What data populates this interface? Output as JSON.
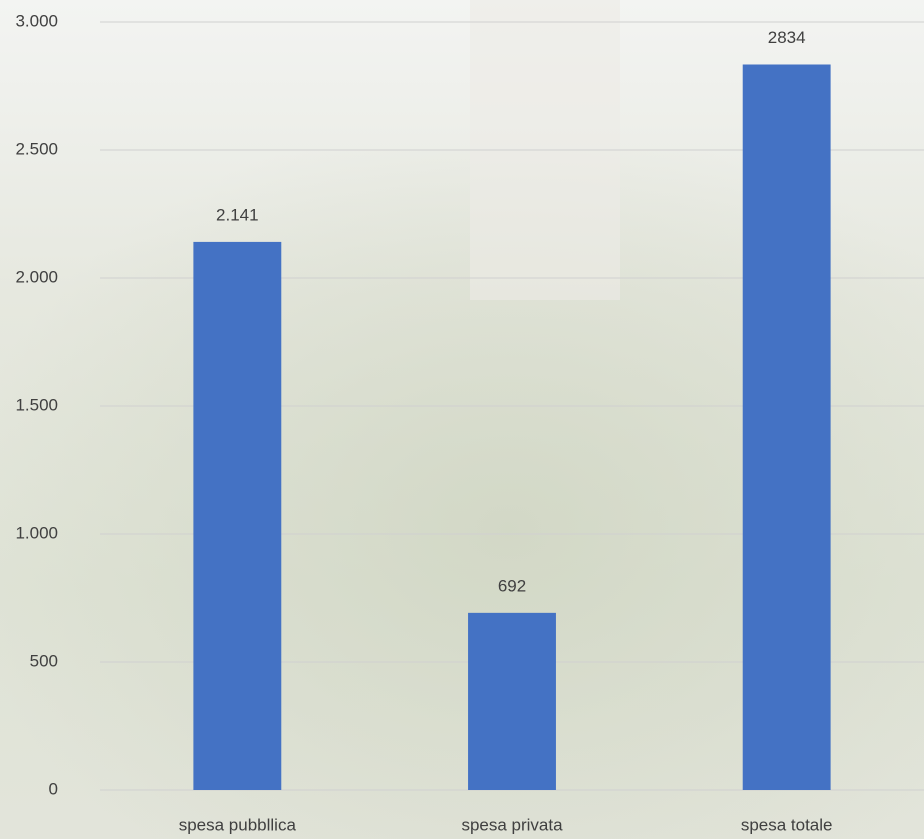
{
  "chart_data": {
    "type": "bar",
    "categories": [
      "spesa pubbllica",
      "spesa privata",
      "spesa totale"
    ],
    "values": [
      2141,
      692,
      2834
    ],
    "value_labels": [
      "2.141",
      "692",
      "2834"
    ],
    "color": "#4472c4",
    "ylim": [
      0,
      3000
    ],
    "yticks": [
      0,
      500,
      {
        "value": 1000,
        "label": "1.000"
      },
      {
        "value": 1500,
        "label": "1.500"
      },
      {
        "value": 2000,
        "label": "2.000"
      },
      {
        "value": 2500,
        "label": "2.500"
      },
      {
        "value": 3000,
        "label": "3.000"
      }
    ],
    "grid": true
  }
}
